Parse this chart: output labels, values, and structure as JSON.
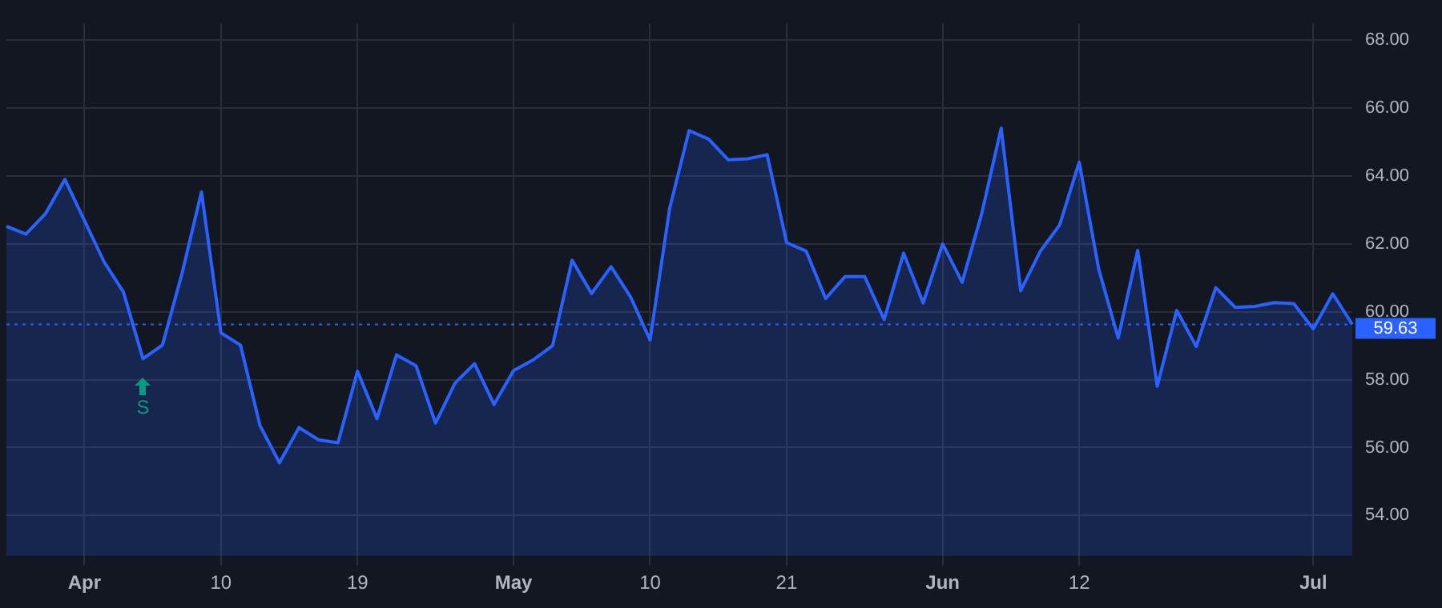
{
  "chart_data": {
    "type": "area",
    "categories": [
      null,
      null,
      null,
      null,
      "Apr",
      null,
      null,
      null,
      null,
      null,
      null,
      "10",
      null,
      null,
      null,
      null,
      null,
      null,
      "19",
      null,
      null,
      null,
      null,
      null,
      null,
      null,
      "May",
      null,
      null,
      null,
      null,
      null,
      null,
      "10",
      null,
      null,
      null,
      null,
      null,
      null,
      "21",
      null,
      null,
      null,
      null,
      null,
      null,
      null,
      "Jun",
      null,
      null,
      null,
      null,
      null,
      null,
      "12",
      null,
      null,
      null,
      null,
      null,
      null,
      null,
      null,
      null,
      null,
      null,
      "Jul",
      null,
      null
    ],
    "series": [
      {
        "color": "#2962ff",
        "values": [
          62.52,
          62.29,
          62.89,
          63.9,
          62.69,
          61.48,
          60.58,
          58.62,
          59.02,
          61.12,
          63.53,
          59.38,
          59.02,
          56.65,
          55.55,
          56.59,
          56.23,
          56.14,
          58.25,
          56.85,
          58.73,
          58.41,
          56.72,
          57.9,
          58.47,
          57.27,
          58.27,
          58.58,
          59.0,
          61.52,
          60.54,
          61.33,
          60.44,
          59.17,
          63.04,
          65.34,
          65.09,
          64.48,
          64.51,
          64.63,
          62.04,
          61.79,
          60.39,
          61.04,
          61.04,
          59.77,
          61.73,
          60.26,
          62.0,
          60.87,
          62.89,
          65.41,
          60.62,
          61.78,
          62.56,
          64.41,
          61.26,
          59.23,
          61.81,
          57.81,
          60.04,
          58.98,
          60.71,
          60.13,
          60.16,
          60.27,
          60.24,
          59.5,
          60.53,
          59.63
        ]
      }
    ],
    "ylim": [
      52.8,
      68.5
    ],
    "yticks": [
      {
        "value": 54,
        "label": "54.00"
      },
      {
        "value": 56,
        "label": "56.00"
      },
      {
        "value": 58,
        "label": "58.00"
      },
      {
        "value": 60,
        "label": "60.00"
      },
      {
        "value": 62,
        "label": "62.00"
      },
      {
        "value": 64,
        "label": "64.00"
      },
      {
        "value": 66,
        "label": "66.00"
      },
      {
        "value": 68,
        "label": "68.00"
      }
    ],
    "ref_lines": [
      {
        "axis": "y",
        "value": 59.63,
        "label": "59.63",
        "color": "#2962ff",
        "line_style": "dotted"
      }
    ],
    "annotations": [
      {
        "text": "S",
        "y": 58.62
      }
    ],
    "grid": true,
    "legend": false,
    "marker": "none",
    "line_style": "solid"
  }
}
